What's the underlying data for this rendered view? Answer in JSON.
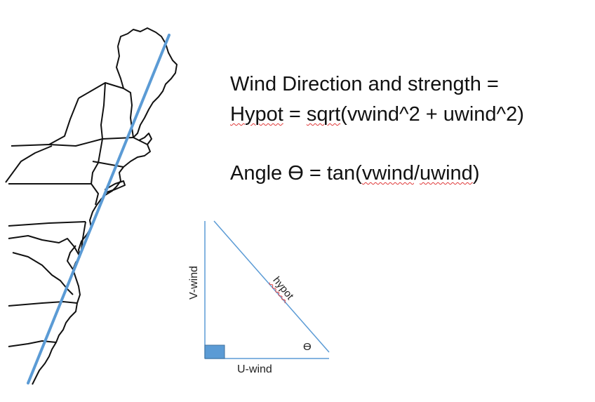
{
  "formulas": {
    "line1": "Wind Direction and strength  =",
    "line2_lhs": "Hypot",
    "line2_eq": " = ",
    "line2_sqrt": "sqrt",
    "line2_rest": "(vwind^2 + uwind^2)",
    "line3_lhs": "Angle ϴ = tan(",
    "line3_vwind": "vwind",
    "line3_slash": "/",
    "line3_uwind": "uwind",
    "line3_close": ")"
  },
  "triangle": {
    "u_label": "U-wind",
    "v_label": "V-wind",
    "hypot_label": "hypot",
    "angle_label": "ϴ"
  },
  "colors": {
    "line": "#5b9bd5",
    "right_angle_fill": "#5b9bd5",
    "map_stroke": "#111111",
    "squiggle": "#e03a3a"
  },
  "icons": {
    "map": "northeast-us-coastline-map",
    "right_angle": "right-angle-square"
  }
}
